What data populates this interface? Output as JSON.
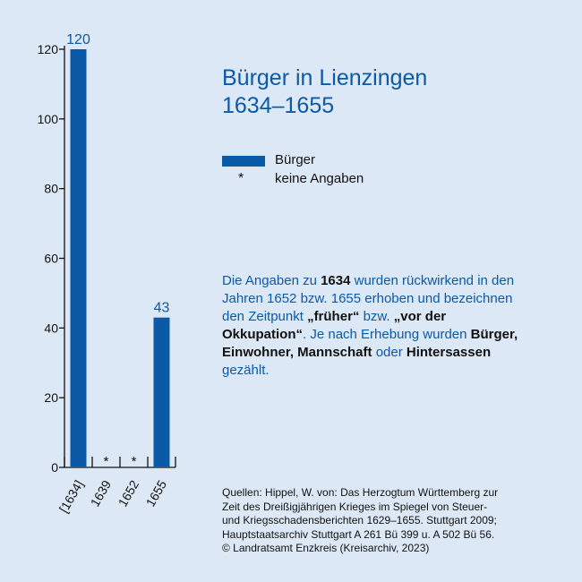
{
  "title": {
    "line1": "Bürger in Lienzingen",
    "line2": "1634–1655"
  },
  "legend": {
    "series_label": "Bürger",
    "na_symbol": "*",
    "na_label": "keine Angaben",
    "color": "#0a5aa8"
  },
  "note": {
    "parts": [
      {
        "text": "Die Angaben zu ",
        "bold": false
      },
      {
        "text": "1634",
        "bold": true
      },
      {
        "text": " wurden rückwirkend in den Jahren 1652 bzw. 1655 erhoben und bezeichnen den Zeitpunkt ",
        "bold": false
      },
      {
        "text": "„früher“",
        "bold": true
      },
      {
        "text": " bzw. ",
        "bold": false
      },
      {
        "text": "„vor der Okkupation“",
        "bold": true
      },
      {
        "text": ". Je nach Erhebung wurden ",
        "bold": false
      },
      {
        "text": "Bürger, Einwohner, Mannschaft",
        "bold": true
      },
      {
        "text": " oder ",
        "bold": false
      },
      {
        "text": "Hintersassen",
        "bold": true
      },
      {
        "text": " gezählt.",
        "bold": false
      }
    ]
  },
  "source": {
    "lines": [
      "Quellen: Hippel, W. von: Das Herzogtum Württemberg zur",
      "Zeit des Dreißigjährigen Krieges im Spiegel von Steuer-",
      "und Kriegsschadensberichten 1629–1655. Stuttgart 2009;",
      "Hauptstaatsarchiv Stuttgart A 261 Bü 399 u. A 502 Bü 56.",
      "© Landratsamt Enzkreis (Kreisarchiv, 2023)"
    ]
  },
  "chart_data": {
    "type": "bar",
    "categories": [
      "[1634]",
      "1639",
      "1652",
      "1655"
    ],
    "values": [
      120,
      null,
      null,
      43
    ],
    "value_labels": [
      "120",
      "*",
      "*",
      "43"
    ],
    "yticks": [
      0,
      20,
      40,
      60,
      80,
      100,
      120
    ],
    "ylim": [
      0,
      120
    ],
    "grid": false,
    "xlabel": "",
    "ylabel": "",
    "bar_color": "#0a5aa8",
    "label_color": "#0a5aa8"
  }
}
